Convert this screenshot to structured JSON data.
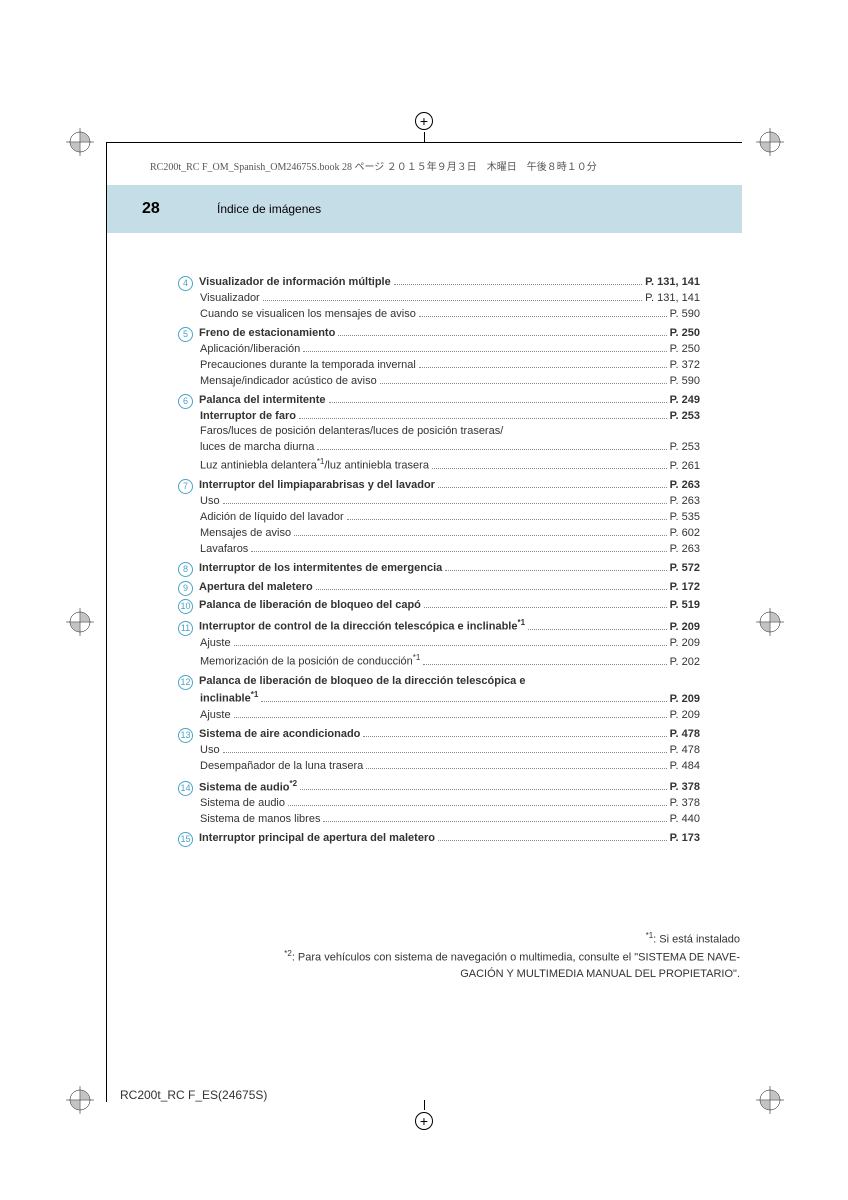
{
  "print_info": "RC200t_RC F_OM_Spanish_OM24675S.book  28 ページ  ２０１５年９月３日　木曜日　午後８時１０分",
  "page_number": "28",
  "header_title": "Índice de imágenes",
  "footer_code": "RC200t_RC F_ES(24675S)",
  "sections": [
    {
      "num": "4",
      "entries": [
        {
          "main": true,
          "label": "Visualizador de información múltiple",
          "page": "P. 131, 141"
        },
        {
          "label": "Visualizador",
          "page": "P. 131, 141"
        },
        {
          "label": "Cuando se visualicen los mensajes de aviso",
          "page": "P. 590"
        }
      ]
    },
    {
      "num": "5",
      "entries": [
        {
          "main": true,
          "label": "Freno de estacionamiento",
          "page": "P. 250"
        },
        {
          "label": "Aplicación/liberación",
          "page": "P. 250"
        },
        {
          "label": "Precauciones durante la temporada invernal",
          "page": "P. 372"
        },
        {
          "label": "Mensaje/indicador acústico de aviso",
          "page": "P. 590"
        }
      ]
    },
    {
      "num": "6",
      "entries": [
        {
          "main": true,
          "label": "Palanca del intermitente",
          "page": "P. 249"
        },
        {
          "main": true,
          "label": "Interruptor de faro",
          "page": "P. 253"
        },
        {
          "nodots": true,
          "label": "Faros/luces de posición delanteras/luces de posición traseras/"
        },
        {
          "label": "luces de marcha diurna",
          "page": "P. 253"
        },
        {
          "label_html": "Luz antiniebla delantera<span class='sup'>*1</span>/luz antiniebla trasera",
          "page": "P. 261"
        }
      ]
    },
    {
      "num": "7",
      "entries": [
        {
          "main": true,
          "label": "Interruptor del limpiaparabrisas y del lavador",
          "page": "P. 263"
        },
        {
          "label": "Uso",
          "page": "P. 263"
        },
        {
          "label": "Adición de líquido del lavador",
          "page": "P. 535"
        },
        {
          "label": "Mensajes de aviso",
          "page": "P. 602"
        },
        {
          "label": "Lavafaros",
          "page": "P. 263"
        }
      ]
    },
    {
      "num": "8",
      "entries": [
        {
          "main": true,
          "label": "Interruptor de los intermitentes de emergencia",
          "page": "P. 572"
        }
      ]
    },
    {
      "num": "9",
      "entries": [
        {
          "main": true,
          "label": "Apertura del maletero",
          "page": "P. 172"
        }
      ]
    },
    {
      "num": "10",
      "entries": [
        {
          "main": true,
          "label": "Palanca de liberación de bloqueo del capó",
          "page": "P. 519"
        }
      ]
    },
    {
      "num": "11",
      "entries": [
        {
          "main": true,
          "label_html": "Interruptor de control de la dirección telescópica e inclinable<span class='sup'>*1</span>",
          "page": "P. 209"
        },
        {
          "label": "Ajuste",
          "page": "P. 209"
        },
        {
          "label_html": "Memorización de la posición de conducción<span class='sup'>*1</span>",
          "page": "P. 202"
        }
      ]
    },
    {
      "num": "12",
      "entries": [
        {
          "main": true,
          "nodots": true,
          "label": "Palanca de liberación de bloqueo de la dirección telescópica e"
        },
        {
          "main": true,
          "label_html": "inclinable<span class='sup'>*1</span>",
          "page": "P. 209"
        },
        {
          "label": "Ajuste",
          "page": "P. 209"
        }
      ]
    },
    {
      "num": "13",
      "entries": [
        {
          "main": true,
          "label": "Sistema de aire acondicionado",
          "page": "P. 478"
        },
        {
          "label": "Uso",
          "page": "P. 478"
        },
        {
          "label": "Desempañador de la luna trasera",
          "page": "P. 484"
        }
      ]
    },
    {
      "num": "14",
      "entries": [
        {
          "main": true,
          "label_html": "Sistema de audio<span class='sup'>*2</span>",
          "page": "P. 378"
        },
        {
          "label": "Sistema de audio",
          "page": "P. 378"
        },
        {
          "label": "Sistema de manos libres",
          "page": "P. 440"
        }
      ]
    },
    {
      "num": "15",
      "entries": [
        {
          "main": true,
          "label": "Interruptor principal de apertura del maletero",
          "page": "P. 173"
        }
      ]
    }
  ],
  "footnote1_html": "<span class='sup'>*1</span>: Si está instalado",
  "footnote2_html": "<span class='sup'>*2</span>: Para vehículos con sistema de navegación o multimedia, consulte el \"SISTEMA DE NAVE-<br>GACIÓN Y MULTIMEDIA MANUAL DEL PROPIETARIO\"."
}
